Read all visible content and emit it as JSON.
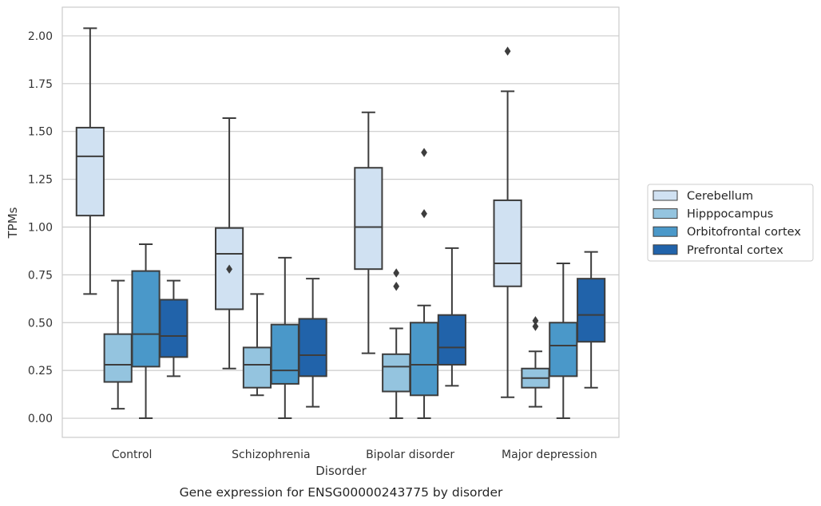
{
  "caption": "Gene expression for ENSG00000243775 by disorder",
  "chart_data": {
    "type": "box",
    "xlabel": "Disorder",
    "ylabel": "TPMs",
    "ylim": [
      -0.1,
      2.15
    ],
    "yticks": [
      0.0,
      0.25,
      0.5,
      0.75,
      1.0,
      1.25,
      1.5,
      1.75,
      2.0
    ],
    "ytick_labels": [
      "0.00",
      "0.25",
      "0.50",
      "0.75",
      "1.00",
      "1.25",
      "1.50",
      "1.75",
      "2.00"
    ],
    "grid": "horizontal",
    "legend_position": "right",
    "categories": [
      "Control",
      "Schizophrenia",
      "Bipolar disorder",
      "Major depression"
    ],
    "series": [
      {
        "name": "Cerebellum",
        "color": "#d0e1f2",
        "boxes": [
          {
            "whislo": 0.65,
            "q1": 1.06,
            "med": 1.37,
            "q3": 1.52,
            "whishi": 2.04,
            "fliers": []
          },
          {
            "whislo": 0.26,
            "q1": 0.57,
            "med": 0.86,
            "q3": 0.995,
            "whishi": 1.57,
            "fliers": [
              0.78
            ]
          },
          {
            "whislo": 0.34,
            "q1": 0.78,
            "med": 1.0,
            "q3": 1.31,
            "whishi": 1.6,
            "fliers": []
          },
          {
            "whislo": 0.11,
            "q1": 0.69,
            "med": 0.81,
            "q3": 1.14,
            "whishi": 1.71,
            "fliers": [
              1.92
            ]
          }
        ]
      },
      {
        "name": "Hipppocampus",
        "color": "#94c4df",
        "boxes": [
          {
            "whislo": 0.05,
            "q1": 0.19,
            "med": 0.28,
            "q3": 0.44,
            "whishi": 0.72,
            "fliers": []
          },
          {
            "whislo": 0.12,
            "q1": 0.16,
            "med": 0.28,
            "q3": 0.37,
            "whishi": 0.65,
            "fliers": []
          },
          {
            "whislo": 0.0,
            "q1": 0.14,
            "med": 0.27,
            "q3": 0.335,
            "whishi": 0.47,
            "fliers": [
              0.76,
              0.69
            ]
          },
          {
            "whislo": 0.06,
            "q1": 0.16,
            "med": 0.21,
            "q3": 0.26,
            "whishi": 0.35,
            "fliers": [
              0.51,
              0.48
            ]
          }
        ]
      },
      {
        "name": "Orbitofrontal cortex",
        "color": "#4a98c9",
        "boxes": [
          {
            "whislo": 0.0,
            "q1": 0.27,
            "med": 0.44,
            "q3": 0.77,
            "whishi": 0.91,
            "fliers": []
          },
          {
            "whislo": 0.0,
            "q1": 0.18,
            "med": 0.25,
            "q3": 0.49,
            "whishi": 0.84,
            "fliers": []
          },
          {
            "whislo": 0.0,
            "q1": 0.12,
            "med": 0.28,
            "q3": 0.5,
            "whishi": 0.59,
            "fliers": [
              1.39,
              1.07
            ]
          },
          {
            "whislo": 0.0,
            "q1": 0.22,
            "med": 0.38,
            "q3": 0.5,
            "whishi": 0.81,
            "fliers": []
          }
        ]
      },
      {
        "name": "Prefrontal cortex",
        "color": "#2163aa",
        "boxes": [
          {
            "whislo": 0.22,
            "q1": 0.32,
            "med": 0.43,
            "q3": 0.62,
            "whishi": 0.72,
            "fliers": []
          },
          {
            "whislo": 0.06,
            "q1": 0.22,
            "med": 0.33,
            "q3": 0.52,
            "whishi": 0.73,
            "fliers": []
          },
          {
            "whislo": 0.17,
            "q1": 0.28,
            "med": 0.37,
            "q3": 0.54,
            "whishi": 0.89,
            "fliers": []
          },
          {
            "whislo": 0.16,
            "q1": 0.4,
            "med": 0.54,
            "q3": 0.73,
            "whishi": 0.87,
            "fliers": []
          }
        ]
      }
    ]
  }
}
